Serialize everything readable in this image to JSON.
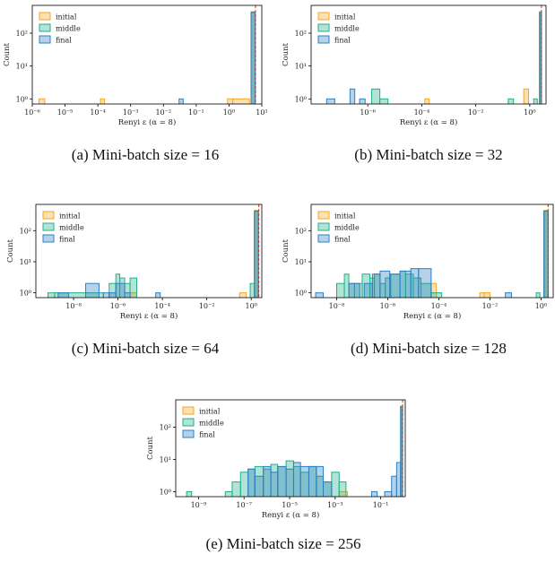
{
  "colors": {
    "initial": "#f5a623",
    "middle": "#20b08a",
    "final": "#2f7fc1",
    "vline": "#c0392b"
  },
  "chart_data": [
    {
      "type": "histogram",
      "caption": "(a) Mini-batch size = 16",
      "xlabel": "Renyi ε (α = 8)",
      "ylabel": "Count",
      "xscale": "log",
      "yscale": "log",
      "xlim": [
        1e-06,
        10
      ],
      "ylim": [
        0.7,
        700
      ],
      "xticks": [
        {
          "v": 1e-06,
          "label": "10⁻⁶"
        },
        {
          "v": 1e-05,
          "label": "10⁻⁵"
        },
        {
          "v": 0.0001,
          "label": "10⁻⁴"
        },
        {
          "v": 0.001,
          "label": "10⁻³"
        },
        {
          "v": 0.01,
          "label": "10⁻²"
        },
        {
          "v": 0.1,
          "label": "10⁻¹"
        },
        {
          "v": 1,
          "label": "10⁰"
        },
        {
          "v": 10,
          "label": "10¹"
        }
      ],
      "yticks": [
        {
          "v": 1,
          "label": "10⁰"
        },
        {
          "v": 10,
          "label": "10¹"
        },
        {
          "v": 100,
          "label": "10²"
        }
      ],
      "legend": [
        "initial",
        "middle",
        "final"
      ],
      "legend_loc": "upper-left",
      "vline": 6.4,
      "series": [
        {
          "name": "initial",
          "bins": [
            [
              1.6e-06,
              2.4e-06,
              1
            ],
            [
              0.00012,
              0.00016,
              1
            ],
            [
              0.9,
              1.3,
              1
            ],
            [
              1.3,
              4.2,
              1
            ],
            [
              4.7,
              6.3,
              450
            ]
          ]
        },
        {
          "name": "middle",
          "bins": [
            [
              4.7,
              6.3,
              420
            ]
          ]
        },
        {
          "name": "final",
          "bins": [
            [
              0.03,
              0.04,
              1
            ],
            [
              4.7,
              6.3,
              430
            ]
          ]
        }
      ]
    },
    {
      "type": "histogram",
      "caption": "(b) Mini-batch size = 32",
      "xlabel": "Renyi ε (α = 8)",
      "ylabel": "Count",
      "xscale": "log",
      "yscale": "log",
      "xlim": [
        8e-09,
        4
      ],
      "ylim": [
        0.7,
        700
      ],
      "xticks": [
        {
          "v": 1e-06,
          "label": "10⁻⁶"
        },
        {
          "v": 0.0001,
          "label": "10⁻⁴"
        },
        {
          "v": 0.01,
          "label": "10⁻²"
        },
        {
          "v": 1,
          "label": "10⁰"
        }
      ],
      "yticks": [
        {
          "v": 1,
          "label": "10⁰"
        },
        {
          "v": 10,
          "label": "10¹"
        },
        {
          "v": 100,
          "label": "10²"
        }
      ],
      "legend": [
        "initial",
        "middle",
        "final"
      ],
      "legend_loc": "upper-left",
      "vline": 2.7,
      "series": [
        {
          "name": "initial",
          "bins": [
            [
              0.00013,
              0.00019,
              1
            ],
            [
              0.6,
              0.9,
              2
            ],
            [
              2.3,
              2.7,
              450
            ]
          ]
        },
        {
          "name": "middle",
          "bins": [
            [
              1.4e-06,
              2.8e-06,
              2
            ],
            [
              2.8e-06,
              5.6e-06,
              1
            ],
            [
              0.16,
              0.25,
              1
            ],
            [
              1.4,
              1.9,
              1
            ],
            [
              2.3,
              2.7,
              420
            ]
          ]
        },
        {
          "name": "final",
          "bins": [
            [
              3e-08,
              6e-08,
              1
            ],
            [
              2.2e-07,
              3.3e-07,
              2
            ],
            [
              5e-07,
              8e-07,
              1
            ],
            [
              2.3,
              2.7,
              430
            ]
          ]
        }
      ]
    },
    {
      "type": "histogram",
      "caption": "(c) Mini-batch size = 64",
      "xlabel": "Renyi ε (α = 8)",
      "ylabel": "Count",
      "xscale": "log",
      "yscale": "log",
      "xlim": [
        2e-10,
        3
      ],
      "ylim": [
        0.7,
        700
      ],
      "xticks": [
        {
          "v": 1e-08,
          "label": "10⁻⁸"
        },
        {
          "v": 1e-06,
          "label": "10⁻⁶"
        },
        {
          "v": 0.0001,
          "label": "10⁻⁴"
        },
        {
          "v": 0.01,
          "label": "10⁻²"
        },
        {
          "v": 1,
          "label": "10⁰"
        }
      ],
      "yticks": [
        {
          "v": 1,
          "label": "10⁰"
        },
        {
          "v": 10,
          "label": "10¹"
        },
        {
          "v": 100,
          "label": "10²"
        }
      ],
      "legend": [
        "initial",
        "middle",
        "final"
      ],
      "legend_loc": "upper-left",
      "vline": 2.2,
      "series": [
        {
          "name": "initial",
          "bins": [
            [
              3.5e-06,
              7e-06,
              1
            ],
            [
              0.3,
              0.6,
              1
            ],
            [
              1.4,
              2.1,
              450
            ]
          ]
        },
        {
          "name": "middle",
          "bins": [
            [
              7e-10,
              1.4e-09,
              1
            ],
            [
              1.4e-09,
              2.2e-07,
              1
            ],
            [
              4e-07,
              8e-07,
              2
            ],
            [
              8e-07,
              1.2e-06,
              4
            ],
            [
              1.2e-06,
              2e-06,
              3
            ],
            [
              2e-06,
              3.5e-06,
              2
            ],
            [
              3.5e-06,
              7e-06,
              3
            ],
            [
              0.9,
              1.4,
              2
            ],
            [
              1.4,
              2.1,
              420
            ]
          ]
        },
        {
          "name": "final",
          "bins": [
            [
              2e-09,
              6e-09,
              1
            ],
            [
              3.5e-08,
              1.4e-07,
              2
            ],
            [
              2.2e-07,
              4e-07,
              1
            ],
            [
              4e-07,
              8e-07,
              1
            ],
            [
              8e-07,
              2e-06,
              2
            ],
            [
              2e-06,
              3.5e-06,
              1
            ],
            [
              5e-05,
              8e-05,
              1
            ],
            [
              1.4,
              2.1,
              430
            ]
          ]
        }
      ]
    },
    {
      "type": "histogram",
      "caption": "(d) Mini-batch size = 128",
      "xlabel": "Renyi ε (α = 8)",
      "ylabel": "Count",
      "xscale": "log",
      "yscale": "log",
      "xlim": [
        1e-09,
        3
      ],
      "ylim": [
        0.7,
        700
      ],
      "xticks": [
        {
          "v": 1e-08,
          "label": "10⁻⁸"
        },
        {
          "v": 1e-06,
          "label": "10⁻⁶"
        },
        {
          "v": 0.0001,
          "label": "10⁻⁴"
        },
        {
          "v": 0.01,
          "label": "10⁻²"
        },
        {
          "v": 1,
          "label": "10⁰"
        }
      ],
      "yticks": [
        {
          "v": 1,
          "label": "10⁰"
        },
        {
          "v": 10,
          "label": "10¹"
        },
        {
          "v": 100,
          "label": "10²"
        }
      ],
      "legend": [
        "initial",
        "middle",
        "final"
      ],
      "legend_loc": "upper-left",
      "vline": 1.9,
      "series": [
        {
          "name": "initial",
          "bins": [
            [
              5e-05,
              8e-05,
              2
            ],
            [
              0.004,
              0.006,
              1
            ],
            [
              0.006,
              0.01,
              1
            ],
            [
              1.3,
              1.9,
              450
            ]
          ]
        },
        {
          "name": "middle",
          "bins": [
            [
              1e-08,
              2e-08,
              2
            ],
            [
              2e-08,
              3e-08,
              4
            ],
            [
              3e-08,
              5e-08,
              2
            ],
            [
              5e-08,
              1e-07,
              2
            ],
            [
              1e-07,
              2e-07,
              4
            ],
            [
              2e-07,
              3e-07,
              3
            ],
            [
              3e-07,
              5e-07,
              4
            ],
            [
              5e-07,
              8e-07,
              2
            ],
            [
              8e-07,
              1.3e-06,
              3
            ],
            [
              1.3e-06,
              3e-06,
              4
            ],
            [
              3e-06,
              5e-06,
              5
            ],
            [
              5e-06,
              1e-05,
              4
            ],
            [
              1e-05,
              2e-05,
              3
            ],
            [
              2e-05,
              5e-05,
              2
            ],
            [
              5e-05,
              0.00013,
              1
            ],
            [
              0.65,
              0.9,
              1
            ],
            [
              1.3,
              1.9,
              420
            ]
          ]
        },
        {
          "name": "final",
          "bins": [
            [
              1.5e-09,
              3e-09,
              1
            ],
            [
              3e-08,
              8e-08,
              2
            ],
            [
              1.2e-07,
              2.5e-07,
              2
            ],
            [
              2.5e-07,
              5e-07,
              4
            ],
            [
              5e-07,
              1.2e-06,
              5
            ],
            [
              1.2e-06,
              3e-06,
              4
            ],
            [
              3e-06,
              8e-06,
              5
            ],
            [
              8e-06,
              1.6e-05,
              6
            ],
            [
              1.6e-05,
              5e-05,
              6
            ],
            [
              0.04,
              0.07,
              1
            ],
            [
              1.3,
              1.9,
              430
            ]
          ]
        }
      ]
    },
    {
      "type": "histogram",
      "caption": "(e) Mini-batch size = 256",
      "xlabel": "Renyi ε (α = 8)",
      "ylabel": "Count",
      "xscale": "log",
      "yscale": "log",
      "xlim": [
        1e-10,
        1.2
      ],
      "ylim": [
        0.7,
        700
      ],
      "xticks": [
        {
          "v": 1e-09,
          "label": "10⁻⁹"
        },
        {
          "v": 1e-07,
          "label": "10⁻⁷"
        },
        {
          "v": 1e-05,
          "label": "10⁻⁵"
        },
        {
          "v": 0.001,
          "label": "10⁻³"
        },
        {
          "v": 0.1,
          "label": "10⁻¹"
        }
      ],
      "yticks": [
        {
          "v": 1,
          "label": "10⁰"
        },
        {
          "v": 10,
          "label": "10¹"
        },
        {
          "v": 100,
          "label": "10²"
        }
      ],
      "legend": [
        "initial",
        "middle",
        "final"
      ],
      "legend_loc": "upper-left",
      "vline": 0.92,
      "series": [
        {
          "name": "initial",
          "bins": [
            [
              0.0015,
              0.0035,
              1
            ],
            [
              0.75,
              0.9,
              450
            ]
          ]
        },
        {
          "name": "middle",
          "bins": [
            [
              3e-10,
              5e-10,
              1
            ],
            [
              1.5e-08,
              3e-08,
              1
            ],
            [
              3e-08,
              7e-08,
              2
            ],
            [
              7e-08,
              1.5e-07,
              4
            ],
            [
              1.5e-07,
              3e-07,
              5
            ],
            [
              3e-07,
              7e-07,
              6
            ],
            [
              7e-07,
              1.5e-06,
              5
            ],
            [
              1.5e-06,
              3e-06,
              7
            ],
            [
              3e-06,
              7e-06,
              6
            ],
            [
              7e-06,
              1.5e-05,
              9
            ],
            [
              1.5e-05,
              3e-05,
              6
            ],
            [
              3e-05,
              7e-05,
              4
            ],
            [
              7e-05,
              0.00015,
              6
            ],
            [
              0.00015,
              0.0003,
              3
            ],
            [
              0.0003,
              0.0007,
              2
            ],
            [
              0.0007,
              0.0015,
              4
            ],
            [
              0.0015,
              0.003,
              2
            ],
            [
              0.75,
              0.9,
              420
            ]
          ]
        },
        {
          "name": "final",
          "bins": [
            [
              1.5e-07,
              3e-07,
              5
            ],
            [
              3e-07,
              7e-07,
              3
            ],
            [
              7e-07,
              1.5e-06,
              6
            ],
            [
              1.5e-06,
              3e-06,
              4
            ],
            [
              3e-06,
              7e-06,
              6
            ],
            [
              7e-06,
              1.5e-05,
              5
            ],
            [
              1.5e-05,
              3e-05,
              8
            ],
            [
              3e-05,
              7e-05,
              6
            ],
            [
              7e-05,
              0.00015,
              6
            ],
            [
              0.00015,
              0.0003,
              6
            ],
            [
              0.0003,
              0.0007,
              2
            ],
            [
              0.04,
              0.07,
              1
            ],
            [
              0.15,
              0.3,
              1
            ],
            [
              0.3,
              0.5,
              3
            ],
            [
              0.5,
              0.75,
              8
            ],
            [
              0.75,
              0.9,
              430
            ]
          ]
        }
      ]
    }
  ]
}
